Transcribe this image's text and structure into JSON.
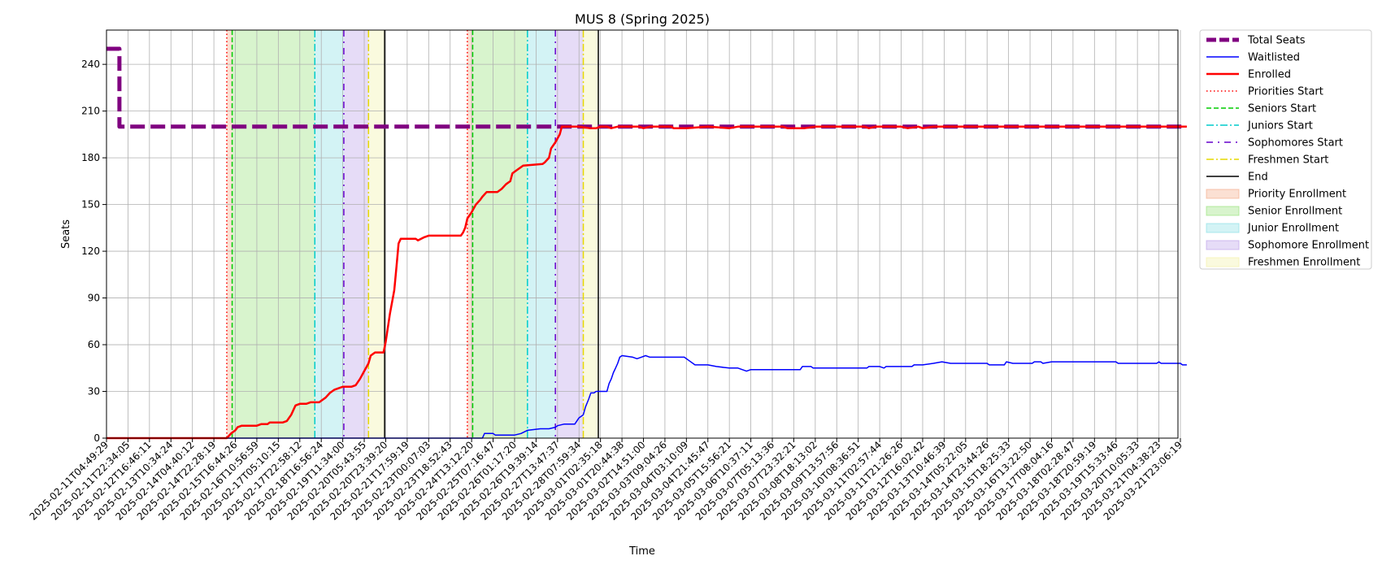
{
  "chart_data": {
    "type": "line",
    "title": "MUS 8 (Spring 2025)",
    "xlabel": "Time",
    "ylabel": "Seats",
    "ylim": [
      0,
      262
    ],
    "yticks": [
      0,
      30,
      60,
      90,
      120,
      150,
      180,
      210,
      240
    ],
    "grid": true,
    "legend_position": "outside-right",
    "x_tick_labels": [
      "2025-02-11T04:49:29",
      "2025-02-11T22:34:05",
      "2025-02-12T16:46:11",
      "2025-02-13T10:34:24",
      "2025-02-14T04:40:12",
      "2025-02-14T22:28:19",
      "2025-02-15T16:44:26",
      "2025-02-16T10:56:59",
      "2025-02-17T05:10:15",
      "2025-02-17T22:58:12",
      "2025-02-18T16:56:24",
      "2025-02-19T11:34:00",
      "2025-02-20T05:43:55",
      "2025-02-20T23:39:20",
      "2025-02-21T17:59:19",
      "2025-02-23T00:07:03",
      "2025-02-23T18:52:43",
      "2025-02-24T13:12:20",
      "2025-02-25T07:16:47",
      "2025-02-26T01:17:20",
      "2025-02-26T19:39:14",
      "2025-02-27T13:47:37",
      "2025-02-28T07:59:34",
      "2025-03-01T02:35:18",
      "2025-03-01T20:44:38",
      "2025-03-02T14:51:00",
      "2025-03-03T09:04:26",
      "2025-03-04T03:10:09",
      "2025-03-04T21:45:47",
      "2025-03-05T15:56:21",
      "2025-03-06T10:37:11",
      "2025-03-07T05:13:36",
      "2025-03-07T23:32:21",
      "2025-03-08T18:13:02",
      "2025-03-09T13:57:56",
      "2025-03-10T08:36:51",
      "2025-03-11T02:57:44",
      "2025-03-11T21:26:26",
      "2025-03-12T16:02:42",
      "2025-03-13T10:46:39",
      "2025-03-14T05:22:05",
      "2025-03-14T23:44:26",
      "2025-03-15T18:25:33",
      "2025-03-16T13:22:50",
      "2025-03-17T08:04:16",
      "2025-03-18T02:28:47",
      "2025-03-18T20:59:19",
      "2025-03-19T15:33:46",
      "2025-03-20T10:05:33",
      "2025-03-21T04:38:23",
      "2025-03-21T23:06:19"
    ],
    "series": [
      {
        "name": "Total Seats",
        "color": "#800080",
        "style": "dashed-thick",
        "points": [
          [
            0,
            250
          ],
          [
            0.6,
            250
          ],
          [
            0.6,
            200
          ],
          [
            50.3,
            200
          ]
        ]
      },
      {
        "name": "Waitlisted",
        "color": "#0000ff",
        "style": "solid",
        "points": [
          [
            0,
            0
          ],
          [
            17.5,
            0
          ],
          [
            17.6,
            3
          ],
          [
            18.0,
            3
          ],
          [
            18.1,
            2
          ],
          [
            19.0,
            2
          ],
          [
            19.3,
            3
          ],
          [
            19.6,
            5
          ],
          [
            20.2,
            6
          ],
          [
            20.6,
            6
          ],
          [
            20.9,
            7
          ],
          [
            21.0,
            8
          ],
          [
            21.3,
            9
          ],
          [
            21.8,
            9
          ],
          [
            21.9,
            11
          ],
          [
            22.0,
            13
          ],
          [
            22.2,
            15
          ],
          [
            22.3,
            20
          ],
          [
            22.45,
            25
          ],
          [
            22.55,
            29
          ],
          [
            22.7,
            29
          ],
          [
            22.8,
            30
          ],
          [
            23.3,
            30
          ],
          [
            23.4,
            35
          ],
          [
            23.5,
            38
          ],
          [
            23.6,
            42
          ],
          [
            23.7,
            45
          ],
          [
            23.8,
            48
          ],
          [
            23.9,
            52
          ],
          [
            24.0,
            53
          ],
          [
            24.5,
            52
          ],
          [
            24.7,
            51
          ],
          [
            24.9,
            52
          ],
          [
            25.1,
            53
          ],
          [
            25.3,
            52
          ],
          [
            26.2,
            52
          ],
          [
            26.9,
            52
          ],
          [
            27.1,
            50
          ],
          [
            27.4,
            47
          ],
          [
            28.0,
            47
          ],
          [
            28.4,
            46
          ],
          [
            29.0,
            45
          ],
          [
            29.4,
            45
          ],
          [
            29.6,
            44
          ],
          [
            29.8,
            43
          ],
          [
            30.0,
            44
          ],
          [
            32.3,
            44
          ],
          [
            32.4,
            46
          ],
          [
            32.8,
            46
          ],
          [
            32.9,
            45
          ],
          [
            34.3,
            45
          ],
          [
            35.4,
            45
          ],
          [
            35.5,
            46
          ],
          [
            36.0,
            46
          ],
          [
            36.2,
            45
          ],
          [
            36.3,
            46
          ],
          [
            37.5,
            46
          ],
          [
            37.6,
            47
          ],
          [
            38.0,
            47
          ],
          [
            38.5,
            48
          ],
          [
            38.9,
            49
          ],
          [
            39.3,
            48
          ],
          [
            41.0,
            48
          ],
          [
            41.1,
            47
          ],
          [
            41.8,
            47
          ],
          [
            41.9,
            49
          ],
          [
            42.2,
            48
          ],
          [
            43.1,
            48
          ],
          [
            43.2,
            49
          ],
          [
            43.5,
            49
          ],
          [
            43.6,
            48
          ],
          [
            44.0,
            49
          ],
          [
            47.0,
            49
          ],
          [
            47.1,
            48
          ],
          [
            48.9,
            48
          ],
          [
            49.0,
            49
          ],
          [
            49.1,
            48
          ],
          [
            50.0,
            48
          ],
          [
            50.1,
            47
          ],
          [
            50.3,
            47
          ]
        ]
      },
      {
        "name": "Enrolled",
        "color": "#ff0000",
        "style": "solid-thick",
        "points": [
          [
            0,
            0
          ],
          [
            5.6,
            0
          ],
          [
            5.8,
            3
          ],
          [
            6.0,
            5
          ],
          [
            6.1,
            7
          ],
          [
            6.3,
            8
          ],
          [
            7.0,
            8
          ],
          [
            7.2,
            9
          ],
          [
            7.5,
            9
          ],
          [
            7.6,
            10
          ],
          [
            8.2,
            10
          ],
          [
            8.4,
            11
          ],
          [
            8.6,
            15
          ],
          [
            8.8,
            21
          ],
          [
            9.0,
            22
          ],
          [
            9.3,
            22
          ],
          [
            9.5,
            23
          ],
          [
            9.9,
            23
          ],
          [
            10.0,
            24
          ],
          [
            10.2,
            26
          ],
          [
            10.4,
            29
          ],
          [
            10.6,
            31
          ],
          [
            10.8,
            32
          ],
          [
            11.0,
            33
          ],
          [
            11.4,
            33
          ],
          [
            11.6,
            34
          ],
          [
            11.8,
            38
          ],
          [
            12.0,
            43
          ],
          [
            12.2,
            48
          ],
          [
            12.3,
            53
          ],
          [
            12.5,
            55
          ],
          [
            12.9,
            55
          ],
          [
            13.0,
            62
          ],
          [
            13.2,
            80
          ],
          [
            13.4,
            95
          ],
          [
            13.5,
            110
          ],
          [
            13.6,
            125
          ],
          [
            13.7,
            128
          ],
          [
            14.0,
            128
          ],
          [
            14.4,
            128
          ],
          [
            14.5,
            127
          ],
          [
            14.8,
            129
          ],
          [
            15.0,
            130
          ],
          [
            16.3,
            130
          ],
          [
            16.5,
            130
          ],
          [
            16.6,
            132
          ],
          [
            16.7,
            135
          ],
          [
            16.8,
            141
          ],
          [
            17.0,
            145
          ],
          [
            17.2,
            150
          ],
          [
            17.4,
            153
          ],
          [
            17.5,
            155
          ],
          [
            17.7,
            158
          ],
          [
            18.2,
            158
          ],
          [
            18.4,
            160
          ],
          [
            18.6,
            163
          ],
          [
            18.8,
            165
          ],
          [
            18.9,
            170
          ],
          [
            19.1,
            172
          ],
          [
            19.3,
            174
          ],
          [
            19.4,
            175
          ],
          [
            20.3,
            176
          ],
          [
            20.4,
            177
          ],
          [
            20.6,
            180
          ],
          [
            20.7,
            186
          ],
          [
            20.9,
            190
          ],
          [
            21.1,
            195
          ],
          [
            21.2,
            200
          ],
          [
            22.0,
            200
          ],
          [
            22.5,
            199
          ],
          [
            22.8,
            199
          ],
          [
            23.0,
            200
          ],
          [
            23.3,
            200
          ],
          [
            23.5,
            199
          ],
          [
            23.8,
            200
          ],
          [
            24.8,
            200
          ],
          [
            25.0,
            199
          ],
          [
            25.3,
            200
          ],
          [
            26.0,
            200
          ],
          [
            26.3,
            200
          ],
          [
            26.4,
            199
          ],
          [
            26.8,
            199
          ],
          [
            27.0,
            199
          ],
          [
            28.0,
            200
          ],
          [
            29.0,
            199
          ],
          [
            29.4,
            200
          ],
          [
            30.0,
            200
          ],
          [
            31.5,
            200
          ],
          [
            31.7,
            199
          ],
          [
            32.5,
            199
          ],
          [
            33.0,
            200
          ],
          [
            35.3,
            200
          ],
          [
            35.5,
            199
          ],
          [
            35.8,
            200
          ],
          [
            37.0,
            200
          ],
          [
            37.3,
            199
          ],
          [
            37.8,
            200
          ],
          [
            38.0,
            199
          ],
          [
            38.5,
            200
          ],
          [
            50.3,
            200
          ]
        ]
      }
    ],
    "vertical_markers": [
      {
        "name": "Priorities Start",
        "x": 5.6,
        "color": "#ff0000",
        "style": "dotted"
      },
      {
        "name": "Priorities Start",
        "x": 16.8,
        "color": "#ff0000",
        "style": "dotted"
      },
      {
        "name": "Seniors Start",
        "x": 5.85,
        "color": "#00cc00",
        "style": "dashed"
      },
      {
        "name": "Seniors Start",
        "x": 17.05,
        "color": "#00cc00",
        "style": "dashed"
      },
      {
        "name": "Juniors Start",
        "x": 9.7,
        "color": "#00cccc",
        "style": "dashdot"
      },
      {
        "name": "Juniors Start",
        "x": 19.6,
        "color": "#00cccc",
        "style": "dashdot"
      },
      {
        "name": "Sophomores Start",
        "x": 11.05,
        "color": "#6600cc",
        "style": "loose-dashdot"
      },
      {
        "name": "Sophomores Start",
        "x": 20.9,
        "color": "#6600cc",
        "style": "loose-dashdot"
      },
      {
        "name": "Freshmen Start",
        "x": 12.2,
        "color": "#e6d800",
        "style": "dashdot"
      },
      {
        "name": "Freshmen Start",
        "x": 22.2,
        "color": "#e6d800",
        "style": "dashdot"
      },
      {
        "name": "End",
        "x": 12.95,
        "color": "#000000",
        "style": "solid"
      },
      {
        "name": "End",
        "x": 22.9,
        "color": "#000000",
        "style": "solid"
      }
    ],
    "shaded_regions": [
      {
        "name": "Priority Enrollment",
        "x0": 5.6,
        "x1": 5.85,
        "color": "#f4a582"
      },
      {
        "name": "Senior Enrollment",
        "x0": 5.85,
        "x1": 9.7,
        "color": "#90e070"
      },
      {
        "name": "Junior Enrollment",
        "x0": 9.7,
        "x1": 11.05,
        "color": "#80dde3"
      },
      {
        "name": "Sophomore Enrollment",
        "x0": 11.05,
        "x1": 12.2,
        "color": "#b89be8"
      },
      {
        "name": "Freshmen Enrollment",
        "x0": 12.2,
        "x1": 12.95,
        "color": "#f2f0a0"
      },
      {
        "name": "Priority Enrollment",
        "x0": 16.8,
        "x1": 17.05,
        "color": "#f4a582"
      },
      {
        "name": "Senior Enrollment",
        "x0": 17.05,
        "x1": 19.6,
        "color": "#90e070"
      },
      {
        "name": "Junior Enrollment",
        "x0": 19.6,
        "x1": 20.9,
        "color": "#80dde3"
      },
      {
        "name": "Sophomore Enrollment",
        "x0": 20.9,
        "x1": 22.2,
        "color": "#b89be8"
      },
      {
        "name": "Freshmen Enrollment",
        "x0": 22.2,
        "x1": 22.9,
        "color": "#f2f0a0"
      }
    ],
    "legend": [
      {
        "label": "Total Seats",
        "kind": "line",
        "color": "#800080",
        "style": "dashed-thick"
      },
      {
        "label": "Waitlisted",
        "kind": "line",
        "color": "#0000ff",
        "style": "solid"
      },
      {
        "label": "Enrolled",
        "kind": "line",
        "color": "#ff0000",
        "style": "solid-thick"
      },
      {
        "label": "Priorities Start",
        "kind": "line",
        "color": "#ff0000",
        "style": "dotted"
      },
      {
        "label": "Seniors Start",
        "kind": "line",
        "color": "#00cc00",
        "style": "dashed"
      },
      {
        "label": "Juniors Start",
        "kind": "line",
        "color": "#00cccc",
        "style": "dashdot"
      },
      {
        "label": "Sophomores Start",
        "kind": "line",
        "color": "#6600cc",
        "style": "loose-dashdot"
      },
      {
        "label": "Freshmen Start",
        "kind": "line",
        "color": "#e6d800",
        "style": "dashdot"
      },
      {
        "label": "End",
        "kind": "line",
        "color": "#000000",
        "style": "solid"
      },
      {
        "label": "Priority Enrollment",
        "kind": "patch",
        "color": "#f4a582"
      },
      {
        "label": "Senior Enrollment",
        "kind": "patch",
        "color": "#90e070"
      },
      {
        "label": "Junior Enrollment",
        "kind": "patch",
        "color": "#80dde3"
      },
      {
        "label": "Sophomore Enrollment",
        "kind": "patch",
        "color": "#b89be8"
      },
      {
        "label": "Freshmen Enrollment",
        "kind": "patch",
        "color": "#f2f0a0"
      }
    ]
  }
}
